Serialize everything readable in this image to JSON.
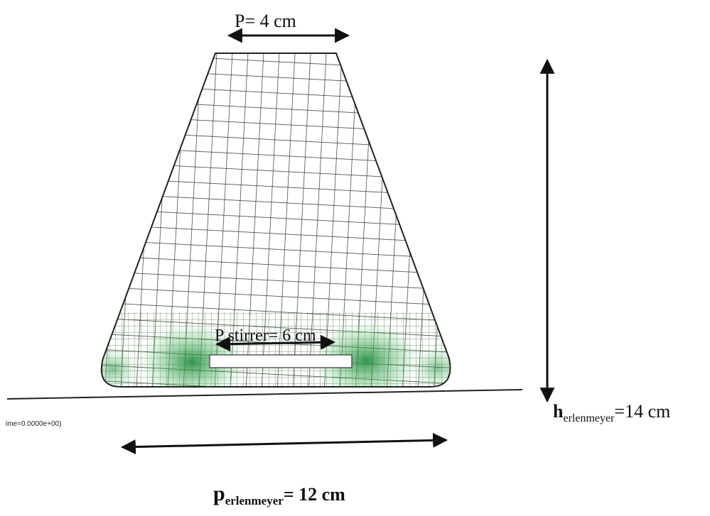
{
  "labels": {
    "top_width": "P= 4 cm",
    "stirrer_width": "P stirrer= 6 cm",
    "height": {
      "symbol": "h",
      "subscript": "erlenmeyer",
      "value": "=14 cm"
    },
    "bottom_width": {
      "symbol": "p",
      "subscript": "erlenmeyer",
      "value": "= 12 cm"
    },
    "time_stamp": "ime=0.0000e+00)"
  }
}
